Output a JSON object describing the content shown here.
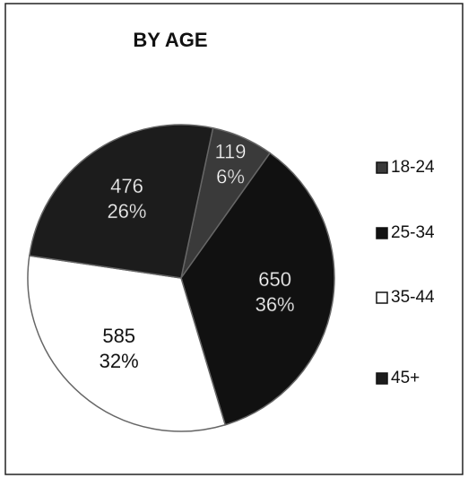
{
  "chart_data": {
    "type": "pie",
    "title": "BY AGE",
    "categories": [
      "18-24",
      "25-34",
      "35-44",
      "45+"
    ],
    "values": [
      119,
      650,
      585,
      476
    ],
    "percent_labels": [
      "6%",
      "36%",
      "32%",
      "26%"
    ],
    "colors": [
      "#3a3a3a",
      "#111111",
      "#ffffff",
      "#1c1c1c"
    ],
    "legend": "right"
  }
}
